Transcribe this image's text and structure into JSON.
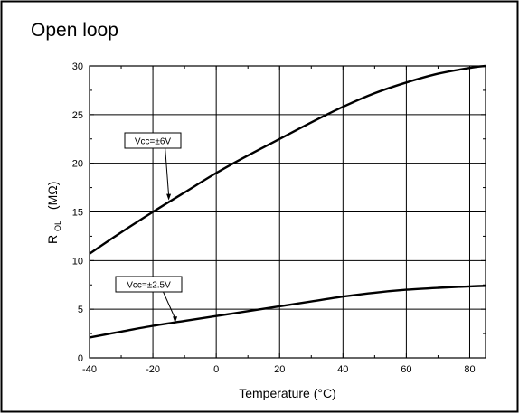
{
  "chart_data": {
    "type": "line",
    "title": "Open loop",
    "xlabel": "Temperature (°C)",
    "ylabel_main": "R",
    "ylabel_sub": "OL",
    "ylabel_unit": "(MΩ)",
    "xlim": [
      -40,
      85
    ],
    "ylim": [
      0,
      30
    ],
    "xticks": [
      -40,
      -20,
      0,
      20,
      40,
      60,
      80
    ],
    "yticks": [
      0,
      5,
      10,
      15,
      20,
      25,
      30
    ],
    "grid": true,
    "series": [
      {
        "name": "Vcc=±6V",
        "x": [
          -40,
          -30,
          -20,
          -10,
          0,
          10,
          20,
          30,
          40,
          50,
          60,
          70,
          80,
          85
        ],
        "y": [
          10.7,
          12.9,
          15.0,
          17.0,
          19.0,
          20.8,
          22.5,
          24.2,
          25.8,
          27.2,
          28.3,
          29.2,
          29.8,
          30.0
        ]
      },
      {
        "name": "Vcc=±2.5V",
        "x": [
          -40,
          -30,
          -20,
          -10,
          0,
          10,
          20,
          30,
          40,
          50,
          60,
          70,
          80,
          85
        ],
        "y": [
          2.1,
          2.7,
          3.3,
          3.8,
          4.3,
          4.8,
          5.3,
          5.8,
          6.3,
          6.7,
          7.0,
          7.2,
          7.35,
          7.4
        ]
      }
    ],
    "annotations": [
      {
        "text": "Vcc=±6V",
        "series": 0,
        "x": -15,
        "y": 16.2
      },
      {
        "text": "Vcc=±2.5V",
        "series": 1,
        "x": -13,
        "y": 3.6
      }
    ]
  }
}
